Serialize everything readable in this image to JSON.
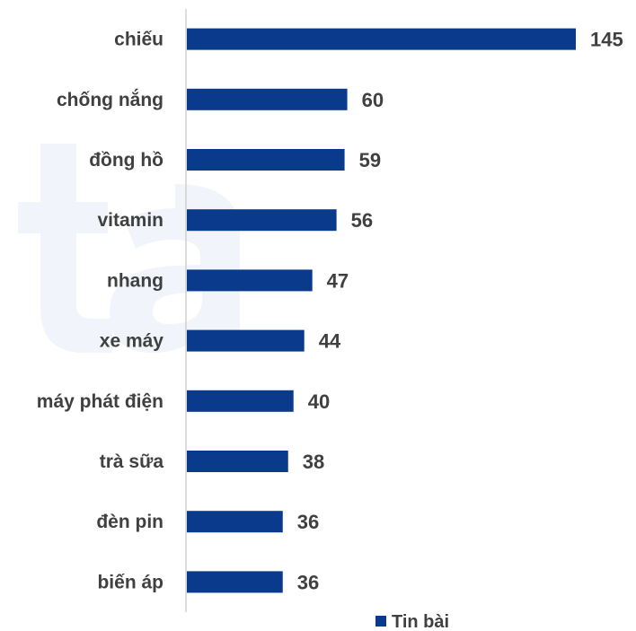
{
  "chart_data": {
    "type": "bar",
    "orientation": "horizontal",
    "categories": [
      "chiếu",
      "chống nắng",
      "đồng hồ",
      "vitamin",
      "nhang",
      "xe máy",
      "máy phát điện",
      "trà sữa",
      "đèn pin",
      "biến áp"
    ],
    "series": [
      {
        "name": "Tin bài",
        "values": [
          145,
          60,
          59,
          56,
          47,
          44,
          40,
          38,
          36,
          36
        ]
      }
    ],
    "xlim": [
      0,
      145
    ],
    "grid": false,
    "legend": "bottom",
    "data_labels": true
  },
  "colors": {
    "bar": "#0a3a8c",
    "text": "#404040",
    "axis": "#d0d0d0",
    "watermark": "#f1f5fb"
  }
}
